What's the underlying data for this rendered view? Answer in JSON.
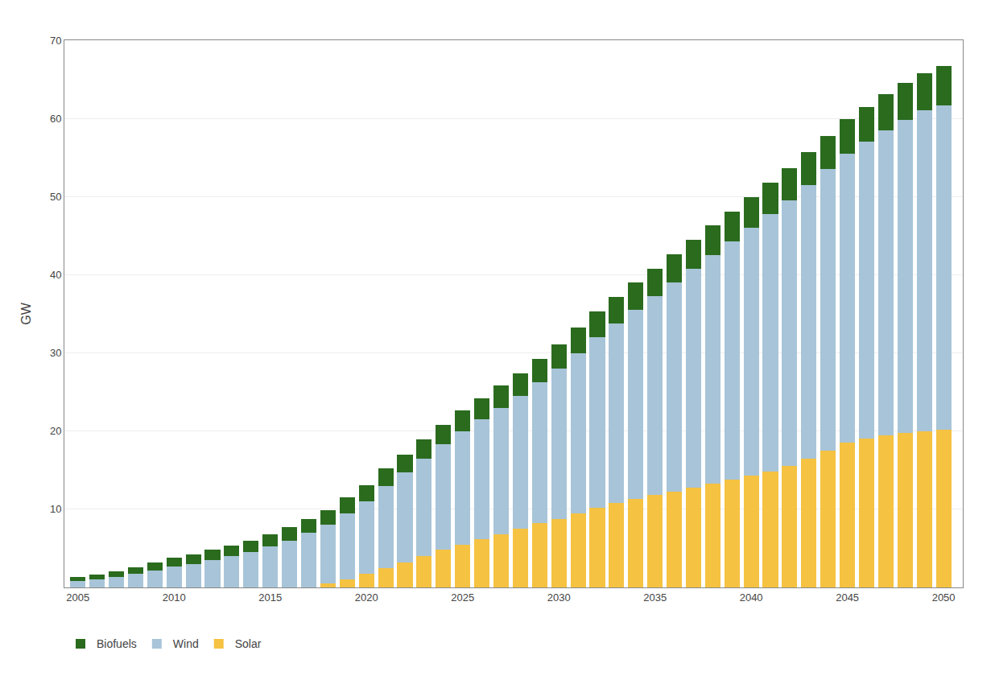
{
  "chart_data": {
    "type": "bar",
    "stacked": true,
    "x": [
      2005,
      2006,
      2007,
      2008,
      2009,
      2010,
      2011,
      2012,
      2013,
      2014,
      2015,
      2016,
      2017,
      2018,
      2019,
      2020,
      2021,
      2022,
      2023,
      2024,
      2025,
      2026,
      2027,
      2028,
      2029,
      2030,
      2031,
      2032,
      2033,
      2034,
      2035,
      2036,
      2037,
      2038,
      2039,
      2040,
      2041,
      2042,
      2043,
      2044,
      2045,
      2046,
      2047,
      2048,
      2049,
      2050
    ],
    "series": [
      {
        "name": "Solar",
        "color": "#F5C242",
        "values": [
          0.0,
          0.0,
          0.0,
          0.0,
          0.0,
          0.0,
          0.0,
          0.0,
          0.0,
          0.0,
          0.0,
          0.0,
          0.0,
          0.5,
          1.0,
          1.8,
          2.5,
          3.2,
          4.0,
          4.8,
          5.5,
          6.2,
          6.8,
          7.5,
          8.2,
          8.8,
          9.5,
          10.2,
          10.8,
          11.3,
          11.8,
          12.3,
          12.8,
          13.3,
          13.8,
          14.3,
          14.8,
          15.5,
          16.5,
          17.5,
          18.5,
          19.0,
          19.5,
          19.8,
          20.0,
          20.2
        ]
      },
      {
        "name": "Wind",
        "color": "#A8C4D8",
        "values": [
          0.8,
          1.0,
          1.3,
          1.7,
          2.2,
          2.7,
          3.0,
          3.5,
          4.0,
          4.5,
          5.2,
          6.0,
          7.0,
          7.5,
          8.5,
          9.2,
          10.5,
          11.5,
          12.5,
          13.5,
          14.5,
          15.3,
          16.2,
          17.0,
          18.0,
          19.2,
          20.5,
          21.8,
          23.0,
          24.2,
          25.5,
          26.7,
          28.0,
          29.2,
          30.5,
          31.7,
          33.0,
          34.0,
          35.0,
          36.0,
          37.0,
          38.0,
          39.0,
          40.0,
          41.0,
          41.5
        ]
      },
      {
        "name": "Biofuels",
        "color": "#2A6B1E",
        "values": [
          0.5,
          0.6,
          0.8,
          0.9,
          1.0,
          1.1,
          1.2,
          1.3,
          1.4,
          1.5,
          1.6,
          1.7,
          1.8,
          1.9,
          2.0,
          2.1,
          2.2,
          2.3,
          2.4,
          2.5,
          2.6,
          2.7,
          2.8,
          2.9,
          3.0,
          3.1,
          3.2,
          3.3,
          3.4,
          3.5,
          3.5,
          3.6,
          3.7,
          3.8,
          3.8,
          3.9,
          4.0,
          4.1,
          4.2,
          4.3,
          4.4,
          4.5,
          4.6,
          4.7,
          4.8,
          5.0
        ]
      }
    ],
    "ylabel": "GW",
    "xlim": [
      2004.3,
      2051.0
    ],
    "ylim": [
      0,
      70
    ],
    "xticks": [
      2005,
      2010,
      2015,
      2020,
      2025,
      2030,
      2035,
      2040,
      2045,
      2050
    ],
    "yticks": [
      10,
      20,
      30,
      40,
      50,
      60,
      70
    ],
    "grid": "y",
    "legend": "lower left"
  }
}
